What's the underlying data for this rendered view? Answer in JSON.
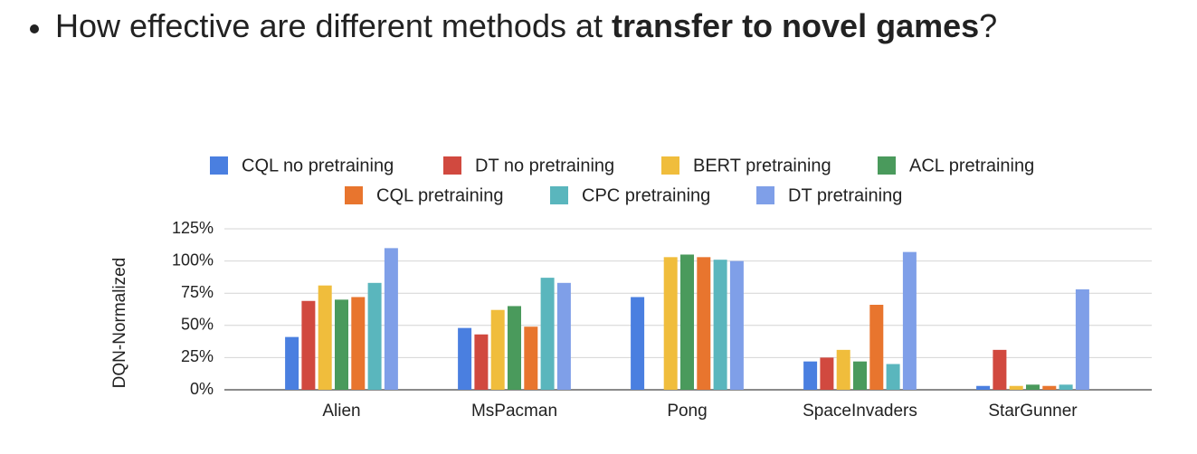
{
  "slide": {
    "question": [
      "How effective are different methods at ",
      "transfer to novel games",
      "?"
    ]
  },
  "chart_data": {
    "type": "bar",
    "y_label": "DQN-Normalized",
    "categories": [
      "Alien",
      "MsPacman",
      "Pong",
      "SpaceInvaders",
      "StarGunner"
    ],
    "series": [
      {
        "name": "CQL no pretraining",
        "color": "#4a7fe0",
        "values": [
          41,
          48,
          72,
          22,
          3
        ]
      },
      {
        "name": "DT no pretraining",
        "color": "#d1493f",
        "values": [
          69,
          43,
          0,
          25,
          31
        ]
      },
      {
        "name": "BERT pretraining",
        "color": "#f0bd3c",
        "values": [
          81,
          62,
          103,
          31,
          3
        ]
      },
      {
        "name": "ACL pretraining",
        "color": "#4a9a5c",
        "values": [
          70,
          65,
          105,
          22,
          4
        ]
      },
      {
        "name": "CQL pretraining",
        "color": "#e8752e",
        "values": [
          72,
          49,
          103,
          66,
          3
        ]
      },
      {
        "name": "CPC pretraining",
        "color": "#5ab6bd",
        "values": [
          83,
          87,
          101,
          20,
          4
        ]
      },
      {
        "name": "DT pretraining",
        "color": "#7f9fe8",
        "values": [
          110,
          83,
          100,
          107,
          78
        ]
      }
    ],
    "ylim": [
      0,
      125
    ],
    "yticks": [
      {
        "value": 0,
        "label": "0%"
      },
      {
        "value": 25,
        "label": "25%"
      },
      {
        "value": 50,
        "label": "50%"
      },
      {
        "value": 75,
        "label": "75%"
      },
      {
        "value": 100,
        "label": "100%"
      },
      {
        "value": 125,
        "label": "125%"
      }
    ],
    "grid": true,
    "legend": "top"
  }
}
